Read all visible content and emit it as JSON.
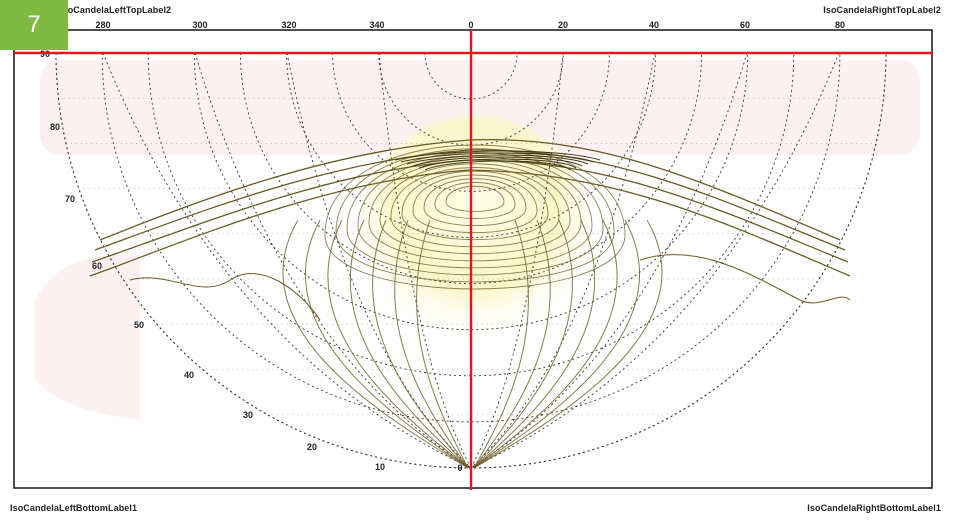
{
  "badge": {
    "number": "7",
    "color": "#7fba42"
  },
  "labels": {
    "left_top": "IsoCandelaLeftTopLabel2",
    "right_top": "IsoCandelaRightTopLabel2",
    "left_bottom": "IsoCandelaLeftBottomLabel1",
    "right_bottom": "IsoCandelaRightBottomLabel1"
  },
  "diagram": {
    "type": "isocandela-diagram",
    "meridians": [
      "280",
      "300",
      "320",
      "340",
      "0",
      "20",
      "40",
      "60",
      "80"
    ],
    "elevations": [
      "90",
      "80",
      "70",
      "60",
      "50",
      "40",
      "30",
      "20",
      "10",
      "0"
    ],
    "crosshair_color": "#e8141b",
    "contour_color": "#6b5a22",
    "hotspot_color": "#fbf6c9",
    "grid_color": "#333333",
    "watermark_color": "#f7d9d7"
  }
}
